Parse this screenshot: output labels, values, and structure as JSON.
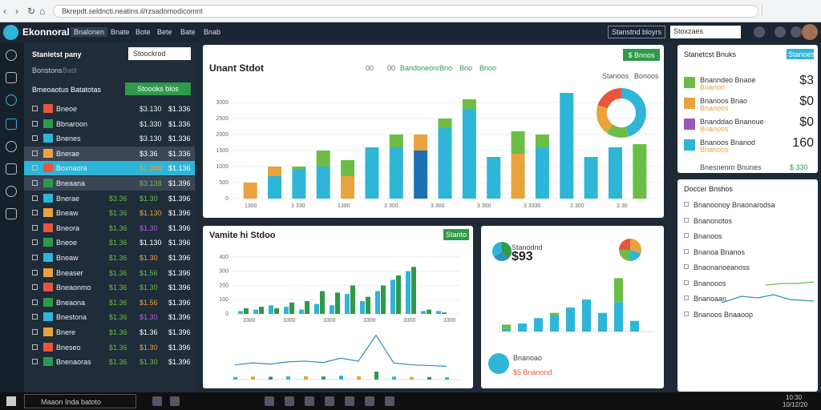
{
  "browser": {
    "address": "Bkrepdt.seldncti.neatins.il/rzsadomodicomnt"
  },
  "header": {
    "logo": "Ekonnoral",
    "nav": [
      "Bnalonen",
      "Bnate",
      "Bote",
      "Bete",
      "Bate",
      "Bnab"
    ],
    "search": "Stanstnd bloyrs",
    "filter": "Stoxzaes"
  },
  "left": {
    "title": "Stanietst pany",
    "search": "Stoockrod",
    "tabs": [
      "Bonstons",
      "Batit"
    ],
    "heading": "Bmeoaotus Batatotas",
    "button": "Stoooks blos",
    "rows": [
      [
        "Bneoe",
        "$3.130",
        "$1.336"
      ],
      [
        "Bbnaroon",
        "$1.330",
        "$1.336"
      ],
      [
        "Bnenes",
        "$3.130",
        "$1.336"
      ],
      [
        "Bnerae",
        "$3.36",
        "$1.336"
      ],
      [
        "Boxnaora",
        "$1.336",
        "$1.136"
      ],
      [
        "Bneaana",
        "$3.138",
        "$1.396"
      ],
      [
        "Bnerae",
        "$3.36",
        "$1.30",
        "$1.396"
      ],
      [
        "Bneaw",
        "$1.36",
        "$1.130",
        "$1.396"
      ],
      [
        "Bneora",
        "$1.36",
        "$1.30",
        "$1.396"
      ],
      [
        "Bneoe",
        "$1.36",
        "$1.130",
        "$1.396"
      ],
      [
        "Bneaw",
        "$1.36",
        "$1.30",
        "$1.396"
      ],
      [
        "Bneaser",
        "$1.36",
        "$1.56",
        "$1.396"
      ],
      [
        "Bneaonmo",
        "$1.36",
        "$1.30",
        "$1.396"
      ],
      [
        "Bneaona",
        "$1.36",
        "$1.56",
        "$1.396"
      ],
      [
        "Bnestona",
        "$1.36",
        "$1.30",
        "$1.396"
      ],
      [
        "Bnere",
        "$1.36",
        "$1.36",
        "$1.396"
      ],
      [
        "Bneseo",
        "$1.36",
        "$1.30",
        "$1.396"
      ],
      [
        "Bnenaoras",
        "$1.36",
        "$1.30",
        "$1.396"
      ]
    ]
  },
  "main_chart": {
    "title": "Unant Stdot",
    "button": "$ Bnnos",
    "legend": [
      "00",
      "00",
      "Bandoneonr",
      "Bno",
      "Bno",
      "Bnoo"
    ],
    "side_tabs": [
      "Stanoos",
      "Bonoos"
    ],
    "ylim": [
      0,
      3500
    ],
    "yticks": [
      0,
      500,
      1000,
      1500,
      2000,
      2500,
      3000
    ],
    "x_labels": [
      "1300",
      "3 330",
      "1390",
      "3 300",
      "3 300",
      "3 300",
      "3 3330",
      "3 300",
      "3 30"
    ],
    "bars": [
      {
        "values": [
          500
        ],
        "colors": [
          "#e8a33c"
        ]
      },
      {
        "values": [
          700,
          300
        ],
        "colors": [
          "#2eb5d8",
          "#e8a33c"
        ]
      },
      {
        "values": [
          900,
          100
        ],
        "colors": [
          "#2eb5d8",
          "#6cbd45"
        ]
      },
      {
        "values": [
          1000,
          500
        ],
        "colors": [
          "#2eb5d8",
          "#6cbd45"
        ]
      },
      {
        "values": [
          700,
          500
        ],
        "colors": [
          "#e8a33c",
          "#6cbd45"
        ]
      },
      {
        "values": [
          1600
        ],
        "colors": [
          "#2eb5d8"
        ]
      },
      {
        "values": [
          1600,
          400
        ],
        "colors": [
          "#2eb5d8",
          "#6cbd45"
        ]
      },
      {
        "values": [
          1500,
          500
        ],
        "colors": [
          "#1f6fb5",
          "#e8a33c"
        ]
      },
      {
        "values": [
          2200,
          300
        ],
        "colors": [
          "#2eb5d8",
          "#6cbd45"
        ]
      },
      {
        "values": [
          2800,
          300
        ],
        "colors": [
          "#2eb5d8",
          "#6cbd45"
        ]
      },
      {
        "values": [
          1300
        ],
        "colors": [
          "#2eb5d8"
        ]
      },
      {
        "values": [
          1400,
          700
        ],
        "colors": [
          "#e8a33c",
          "#6cbd45"
        ]
      },
      {
        "values": [
          1600,
          400
        ],
        "colors": [
          "#2eb5d8",
          "#6cbd45"
        ]
      },
      {
        "values": [
          3300
        ],
        "colors": [
          "#2eb5d8"
        ]
      },
      {
        "values": [
          1300
        ],
        "colors": [
          "#2eb5d8"
        ]
      },
      {
        "values": [
          1600
        ],
        "colors": [
          "#2eb5d8"
        ]
      },
      {
        "values": [
          1700
        ],
        "colors": [
          "#6cbd45"
        ]
      }
    ],
    "donut": {
      "values": [
        45,
        15,
        20,
        20
      ],
      "colors": [
        "#2eb5d8",
        "#6cbd45",
        "#e8a33c",
        "#e8553c"
      ]
    }
  },
  "bottom_chart": {
    "title": "Vamite hi Stdoo",
    "button": "Stanto",
    "ylim": [
      0,
      450
    ],
    "yticks": [
      0,
      100,
      200,
      300,
      400
    ],
    "bars": [
      [
        20,
        40
      ],
      [
        30,
        50
      ],
      [
        60,
        40
      ],
      [
        50,
        80
      ],
      [
        30,
        90
      ],
      [
        70,
        160
      ],
      [
        60,
        150
      ],
      [
        140,
        200
      ],
      [
        90,
        120
      ],
      [
        160,
        200
      ],
      [
        240,
        270
      ],
      [
        300,
        330
      ],
      [
        20,
        30
      ],
      [
        20,
        10
      ]
    ],
    "line": [
      40,
      45,
      42,
      48,
      50,
      46,
      58,
      50,
      120,
      45,
      40,
      38,
      36
    ],
    "x_labels": [
      "3300",
      "3300",
      "3300",
      "3300",
      "3300",
      "3300"
    ]
  },
  "side_chart": {
    "amount": "$93",
    "label": "Stanodnd",
    "pie": [
      40,
      25,
      35
    ],
    "pie2": [
      30,
      20,
      25,
      25
    ],
    "ylim": [
      0,
      120
    ],
    "bars": [
      [
        5,
        8
      ],
      [
        15,
        0
      ],
      [
        25,
        0
      ],
      [
        30,
        5
      ],
      [
        45,
        0
      ],
      [
        60,
        0
      ],
      [
        35,
        0
      ],
      [
        55,
        45
      ],
      [
        20,
        0
      ]
    ],
    "footer": "Bnanoao",
    "footer_value": "$5 Bnanond"
  },
  "right_top": {
    "title": "Stanetcst Bnuks",
    "button": "Stanoes",
    "rows": [
      [
        "Bnanndeo Bnaoe",
        "Bnanon",
        "$3"
      ],
      [
        "Bnanoos Bnao",
        "Bnanoos",
        "$0"
      ],
      [
        "Bnanddao Bnanoue",
        "Bnanoos",
        "$0"
      ],
      [
        "Bnanoos Bnanod",
        "Bnanoos",
        "160"
      ]
    ],
    "footer": "Bnesnenro Bnunes",
    "footer_value": "$ 330"
  },
  "right_bottom": {
    "title": "Doccer Bnshos",
    "items": [
      "Bnanoonoy Bnaonarodsa",
      "Bnanonotos",
      "Bnanoos",
      "Bnanoa Bnanos",
      "Bnaonanoeanoss",
      "Bnanooos",
      "Bnanoaan",
      "Bnanoos Bnaaoop"
    ]
  },
  "taskbar": {
    "search": "Maaon Inda batoto",
    "time": "10:30",
    "date": "10/12/20"
  }
}
